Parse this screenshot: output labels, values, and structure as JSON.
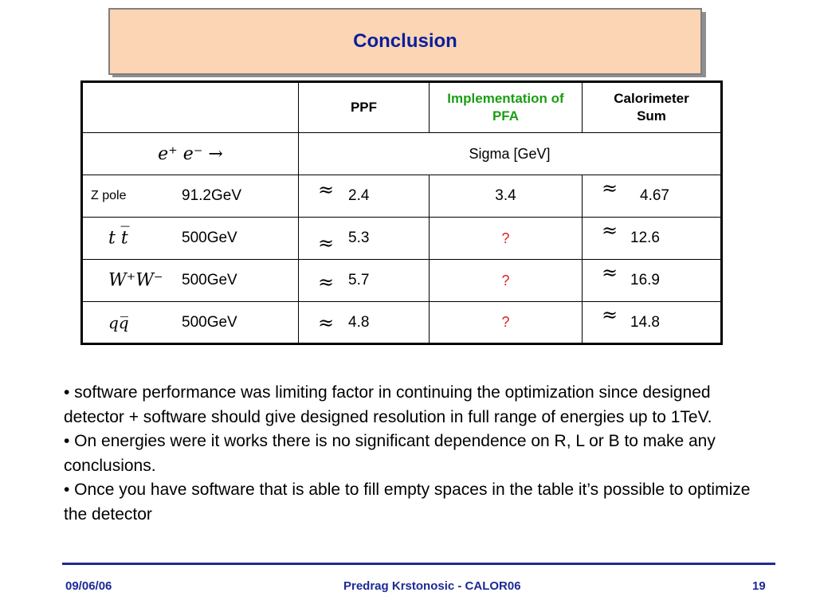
{
  "title": "Conclusion",
  "table": {
    "headers": [
      "",
      "PPF",
      "Implementation of PFA",
      "Calorimeter Sum"
    ],
    "reaction": "e⁺ e⁻ →",
    "sigma_label": "Sigma [GeV]",
    "approx_symbol": "≈",
    "rows": [
      {
        "process": "Z pole",
        "energy": "91.2GeV",
        "ppf": "2.4",
        "pfa": "3.4",
        "cal": "4.67"
      },
      {
        "process": "t t̅",
        "energy": "500GeV",
        "ppf": "5.3",
        "pfa": "?",
        "cal": "12.6"
      },
      {
        "process": "W⁺W⁻",
        "energy": "500GeV",
        "ppf": "5.7",
        "pfa": "?",
        "cal": "16.9"
      },
      {
        "process": "qq̅",
        "energy": "500GeV",
        "ppf": "4.8",
        "pfa": "?",
        "cal": "14.8"
      }
    ]
  },
  "bullets": [
    "• software performance was  limiting factor in continuing the optimization since designed detector + software should give designed resolution in full range of energies  up to 1TeV.",
    "• On energies were it works there is no significant dependence on R, L or B to make any  conclusions.",
    "• Once you have software that is able to fill empty spaces in the table it’s possible to optimize the detector"
  ],
  "footer": {
    "date": "09/06/06",
    "center": "Predrag Krstonosic -  CALOR06",
    "page": "19"
  },
  "colors": {
    "title_bg": "#fcd5b4",
    "title_text": "#0b1f9c",
    "pfa_header": "#1a9e14",
    "question_mark": "#e02020",
    "footer": "#1c2a96"
  }
}
